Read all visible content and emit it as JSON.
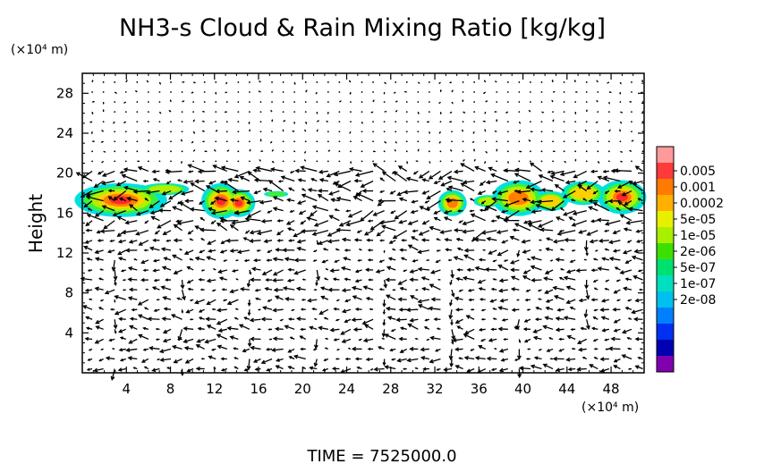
{
  "chart_data": {
    "type": "heatmap",
    "title": "NH3-s Cloud & Rain Mixing Ratio [kg/kg]",
    "xlabel": "",
    "ylabel": "Height",
    "x_unit": "(×10⁴ m)",
    "y_unit": "(×10⁴ m)",
    "footer": "TIME = 7525000.0",
    "xlim": [
      0,
      51
    ],
    "ylim": [
      0,
      30
    ],
    "xticks": [
      4,
      8,
      12,
      16,
      20,
      24,
      28,
      32,
      36,
      40,
      44,
      48
    ],
    "yticks": [
      4,
      8,
      12,
      16,
      20,
      24,
      28
    ],
    "colorbar": {
      "labels": [
        "0.005",
        "0.001",
        "0.0002",
        "5e-05",
        "1e-05",
        "2e-06",
        "5e-07",
        "1e-07",
        "2e-08"
      ],
      "colors": [
        "#ff9a9a",
        "#ff3a3a",
        "#ff7a00",
        "#ffb000",
        "#e8f000",
        "#a8f000",
        "#3ce000",
        "#00e070",
        "#00e0c0",
        "#00c0f0",
        "#0080ff",
        "#0030f0",
        "#0000b0",
        "#8000b0"
      ]
    },
    "features": {
      "cloud_layer_height": [
        15.5,
        19.5
      ],
      "cloud_regions_x": [
        [
          0,
          9
        ],
        [
          10.5,
          19
        ],
        [
          32.5,
          51
        ]
      ],
      "wind_vectors": true
    }
  }
}
